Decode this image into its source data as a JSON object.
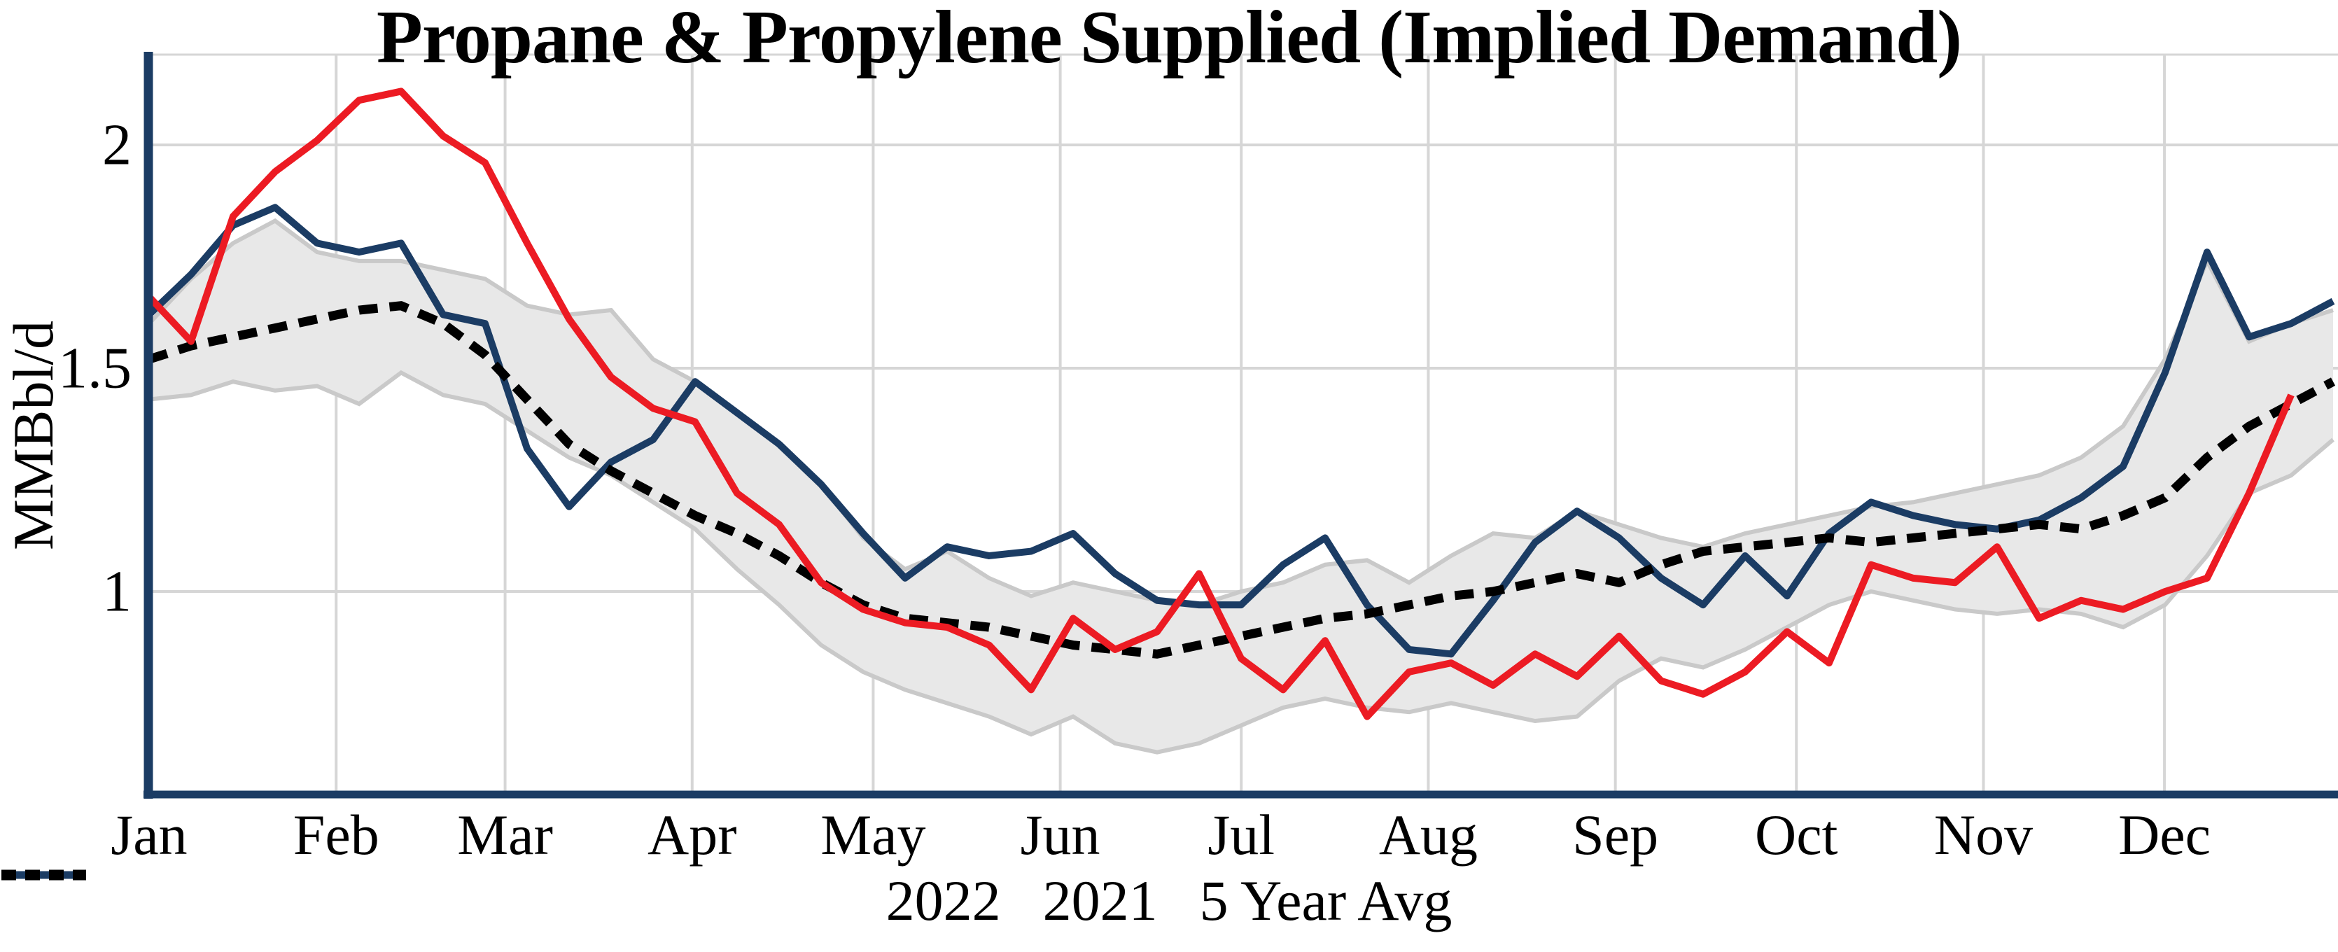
{
  "title": "Propane & Propylene Supplied (Implied Demand)",
  "y_axis": {
    "label": "MMBbl/d",
    "ticks": [
      {
        "value": 2,
        "label": "2"
      },
      {
        "value": 1.5,
        "label": "1.5"
      },
      {
        "value": 1,
        "label": "1"
      }
    ]
  },
  "x_axis": {
    "month_labels": [
      "Jan",
      "Feb",
      "Mar",
      "Apr",
      "May",
      "Jun",
      "Jul",
      "Aug",
      "Sep",
      "Oct",
      "Nov",
      "Dec"
    ],
    "month_start_day": [
      0,
      31,
      59,
      90,
      120,
      151,
      181,
      212,
      243,
      273,
      304,
      334
    ]
  },
  "legend": [
    {
      "label": "2022",
      "style": "solid",
      "color": "#EC1B23"
    },
    {
      "label": "2021",
      "style": "solid",
      "color": "#1B3C64"
    },
    {
      "label": "5 Year Avg",
      "style": "dotted",
      "color": "#000000"
    }
  ],
  "colors": {
    "red_2022": "#EC1B23",
    "navy_2021": "#1B3C64",
    "avg_dotted": "#000000",
    "band_fill": "#E8E8E8",
    "band_edge": "#C9C9C9",
    "gridline": "#D6D6D6",
    "axis": "#1B3C64",
    "background": "#FFFFFF"
  },
  "chart_data": {
    "type": "line",
    "title": "Propane & Propylene Supplied (Implied Demand)",
    "xlabel": "",
    "ylabel": "MMBbl/d",
    "x_unit": "week_of_year",
    "ylim": [
      0.545,
      2.2
    ],
    "grid": true,
    "legend_position": "bottom-center",
    "categories_months": [
      "Jan",
      "Feb",
      "Mar",
      "Apr",
      "May",
      "Jun",
      "Jul",
      "Aug",
      "Sep",
      "Oct",
      "Nov",
      "Dec"
    ],
    "series": [
      {
        "name": "2022",
        "color": "#EC1B23",
        "style": "solid",
        "values": [
          1.66,
          1.56,
          1.84,
          1.94,
          2.01,
          2.1,
          2.12,
          2.02,
          1.96,
          1.78,
          1.61,
          1.48,
          1.41,
          1.38,
          1.22,
          1.15,
          1.02,
          0.96,
          0.93,
          0.92,
          0.88,
          0.78,
          0.94,
          0.87,
          0.91,
          1.04,
          0.85,
          0.78,
          0.89,
          0.72,
          0.82,
          0.84,
          0.79,
          0.86,
          0.81,
          0.9,
          0.8,
          0.77,
          0.82,
          0.91,
          0.84,
          1.06,
          1.03,
          1.02,
          1.1,
          0.94,
          0.98,
          0.96,
          1.0,
          1.03,
          1.22,
          1.44
        ]
      },
      {
        "name": "2021",
        "color": "#1B3C64",
        "style": "solid",
        "values": [
          1.62,
          1.71,
          1.82,
          1.86,
          1.78,
          1.76,
          1.78,
          1.62,
          1.6,
          1.32,
          1.19,
          1.29,
          1.34,
          1.47,
          1.4,
          1.33,
          1.24,
          1.13,
          1.03,
          1.1,
          1.08,
          1.09,
          1.13,
          1.04,
          0.98,
          0.97,
          0.97,
          1.06,
          1.12,
          0.97,
          0.87,
          0.86,
          0.98,
          1.11,
          1.18,
          1.12,
          1.03,
          0.97,
          1.08,
          0.99,
          1.13,
          1.2,
          1.17,
          1.15,
          1.14,
          1.16,
          1.21,
          1.28,
          1.49,
          1.76,
          1.57,
          1.6,
          1.65
        ]
      },
      {
        "name": "5 Year Avg",
        "color": "#000000",
        "style": "dotted",
        "values": [
          1.52,
          1.55,
          1.57,
          1.59,
          1.61,
          1.63,
          1.64,
          1.6,
          1.53,
          1.43,
          1.33,
          1.27,
          1.22,
          1.17,
          1.13,
          1.08,
          1.02,
          0.97,
          0.94,
          0.93,
          0.92,
          0.9,
          0.88,
          0.87,
          0.86,
          0.88,
          0.9,
          0.92,
          0.94,
          0.95,
          0.97,
          0.99,
          1.0,
          1.02,
          1.04,
          1.02,
          1.06,
          1.09,
          1.1,
          1.11,
          1.12,
          1.11,
          1.12,
          1.13,
          1.14,
          1.15,
          1.14,
          1.17,
          1.21,
          1.3,
          1.37,
          1.42,
          1.47
        ]
      }
    ],
    "range_band_5yr": {
      "upper": [
        1.6,
        1.7,
        1.78,
        1.83,
        1.76,
        1.74,
        1.74,
        1.72,
        1.7,
        1.64,
        1.62,
        1.63,
        1.52,
        1.47,
        1.4,
        1.33,
        1.24,
        1.12,
        1.05,
        1.09,
        1.03,
        0.99,
        1.02,
        1.0,
        0.98,
        0.97,
        1.0,
        1.02,
        1.06,
        1.07,
        1.02,
        1.08,
        1.13,
        1.12,
        1.18,
        1.15,
        1.12,
        1.1,
        1.13,
        1.15,
        1.17,
        1.19,
        1.2,
        1.22,
        1.24,
        1.26,
        1.3,
        1.37,
        1.52,
        1.74,
        1.56,
        1.6,
        1.63
      ],
      "lower": [
        1.43,
        1.44,
        1.47,
        1.45,
        1.46,
        1.42,
        1.49,
        1.44,
        1.42,
        1.36,
        1.3,
        1.26,
        1.2,
        1.14,
        1.05,
        0.97,
        0.88,
        0.82,
        0.78,
        0.75,
        0.72,
        0.68,
        0.72,
        0.66,
        0.64,
        0.66,
        0.7,
        0.74,
        0.76,
        0.74,
        0.73,
        0.75,
        0.73,
        0.71,
        0.72,
        0.8,
        0.85,
        0.83,
        0.87,
        0.92,
        0.97,
        1.0,
        0.98,
        0.96,
        0.95,
        0.96,
        0.95,
        0.92,
        0.97,
        1.08,
        1.22,
        1.26,
        1.34
      ]
    }
  }
}
